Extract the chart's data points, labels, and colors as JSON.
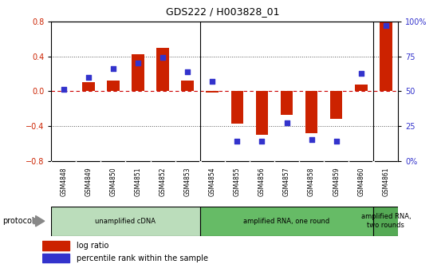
{
  "title": "GDS222 / H003828_01",
  "samples": [
    "GSM4848",
    "GSM4849",
    "GSM4850",
    "GSM4851",
    "GSM4852",
    "GSM4853",
    "GSM4854",
    "GSM4855",
    "GSM4856",
    "GSM4857",
    "GSM4858",
    "GSM4859",
    "GSM4860",
    "GSM4861"
  ],
  "log_ratio": [
    0.0,
    0.1,
    0.12,
    0.42,
    0.5,
    0.12,
    -0.02,
    -0.37,
    -0.5,
    -0.27,
    -0.48,
    -0.32,
    0.08,
    0.8
  ],
  "percentile": [
    51,
    60,
    66,
    70,
    74,
    64,
    57,
    14,
    14,
    27,
    15,
    14,
    63,
    97
  ],
  "ylim_left": [
    -0.8,
    0.8
  ],
  "ylim_right": [
    0,
    100
  ],
  "yticks_left": [
    -0.8,
    -0.4,
    0.0,
    0.4,
    0.8
  ],
  "yticks_right": [
    0,
    25,
    50,
    75,
    100
  ],
  "ytick_labels_right": [
    "0%",
    "25",
    "50",
    "75",
    "100%"
  ],
  "bar_color": "#cc2200",
  "dot_color": "#3333cc",
  "zero_line_color": "#cc0000",
  "dotted_color": "#555555",
  "protocol_groups": [
    {
      "label": "unamplified cDNA",
      "start": 0,
      "end": 5,
      "color": "#bbddbb"
    },
    {
      "label": "amplified RNA, one round",
      "start": 6,
      "end": 12,
      "color": "#66bb66"
    },
    {
      "label": "amplified RNA,\ntwo rounds",
      "start": 13,
      "end": 13,
      "color": "#55aa55"
    }
  ],
  "legend_items": [
    {
      "label": "log ratio",
      "color": "#cc2200"
    },
    {
      "label": "percentile rank within the sample",
      "color": "#3333cc"
    }
  ],
  "protocol_label": "protocol",
  "background_color": "#ffffff",
  "plot_bg_color": "#ffffff",
  "tick_label_color_left": "#cc2200",
  "tick_label_color_right": "#3333cc",
  "label_bg_color": "#cccccc",
  "label_border_color": "#888888"
}
